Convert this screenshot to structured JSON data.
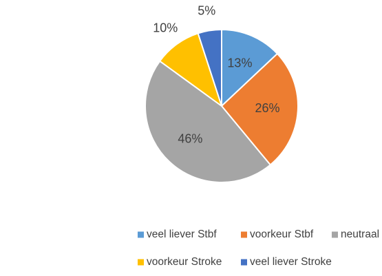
{
  "chart_data": {
    "type": "pie",
    "categories": [
      "veel liever Stbf",
      "voorkeur Stbf",
      "neutraal",
      "voorkeur Stroke",
      "veel liever Stroke"
    ],
    "values": [
      13,
      26,
      46,
      10,
      5
    ],
    "value_labels": [
      "13%",
      "26%",
      "46%",
      "10%",
      "5%"
    ],
    "colors": [
      "#5b9bd5",
      "#ed7d31",
      "#a5a5a5",
      "#ffc000",
      "#4472c4"
    ],
    "legend": "bottom"
  }
}
